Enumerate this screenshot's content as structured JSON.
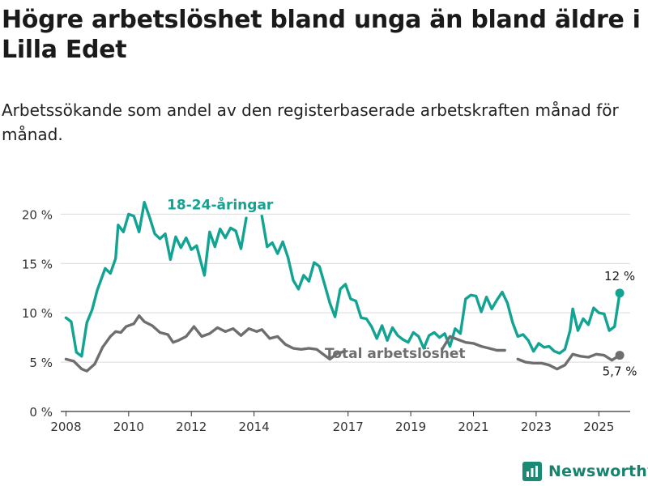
{
  "header": {
    "title": "Högre arbetslöshet bland unga än bland äldre i Lilla Edet",
    "subtitle": "Arbetssökande som andel av den registerbaserade arbetskraften månad för månad."
  },
  "brand": {
    "name": "Newsworthy",
    "icon": "newsworthy-bar-chart-logo",
    "color": "#1a8a75"
  },
  "colors": {
    "youth": "#12a392",
    "total": "#6e6e6e",
    "grid": "#d9d9d9",
    "axis": "#333333"
  },
  "chart_data": {
    "type": "line",
    "title": "Högre arbetslöshet bland unga än bland äldre i Lilla Edet",
    "subtitle": "Arbetssökande som andel av den registerbaserade arbetskraften månad för månad.",
    "xlabel": "",
    "ylabel": "",
    "xlim": [
      "2007-11",
      "2026-01"
    ],
    "ylim": [
      0,
      22
    ],
    "yticks": [
      0,
      5,
      10,
      15,
      20
    ],
    "ytick_labels": [
      "0 %",
      "5 %",
      "10 %",
      "15 %",
      "20 %"
    ],
    "xticks": [
      "2008-01",
      "2010-01",
      "2012-01",
      "2014-01",
      "2017-01",
      "2019-01",
      "2021-01",
      "2023-01",
      "2025-01"
    ],
    "xtick_labels": [
      "2008",
      "2010",
      "2012",
      "2014",
      "2017",
      "2019",
      "2021",
      "2023",
      "2025"
    ],
    "grid": true,
    "series": [
      {
        "name": "18-24-åringar",
        "color": "#12a392",
        "end_label": "12 %",
        "end_value": 12.0,
        "points": [
          [
            "2008-01",
            9.5
          ],
          [
            "2008-03",
            9.1
          ],
          [
            "2008-05",
            6.0
          ],
          [
            "2008-07",
            5.6
          ],
          [
            "2008-09",
            9.0
          ],
          [
            "2008-11",
            10.3
          ],
          [
            "2009-01",
            12.3
          ],
          [
            "2009-04",
            14.5
          ],
          [
            "2009-06",
            14.0
          ],
          [
            "2009-08",
            15.5
          ],
          [
            "2009-09",
            18.9
          ],
          [
            "2009-11",
            18.2
          ],
          [
            "2010-01",
            20.0
          ],
          [
            "2010-03",
            19.8
          ],
          [
            "2010-05",
            18.2
          ],
          [
            "2010-07",
            21.2
          ],
          [
            "2010-09",
            19.7
          ],
          [
            "2010-11",
            18.0
          ],
          [
            "2011-01",
            17.5
          ],
          [
            "2011-03",
            18.0
          ],
          [
            "2011-05",
            15.4
          ],
          [
            "2011-07",
            17.7
          ],
          [
            "2011-09",
            16.6
          ],
          [
            "2011-11",
            17.6
          ],
          [
            "2012-01",
            16.4
          ],
          [
            "2012-03",
            16.8
          ],
          [
            "2012-05",
            14.8
          ],
          [
            "2012-06",
            13.8
          ],
          [
            "2012-08",
            18.2
          ],
          [
            "2012-10",
            16.7
          ],
          [
            "2012-12",
            18.5
          ],
          [
            "2013-02",
            17.6
          ],
          [
            "2013-04",
            18.6
          ],
          [
            "2013-06",
            18.3
          ],
          [
            "2013-08",
            16.5
          ],
          [
            "2013-10",
            19.6
          ]
        ],
        "points_2": [
          [
            "2014-04",
            19.8
          ],
          [
            "2014-06",
            16.7
          ],
          [
            "2014-08",
            17.1
          ],
          [
            "2014-10",
            16.0
          ],
          [
            "2014-12",
            17.2
          ],
          [
            "2015-02",
            15.6
          ],
          [
            "2015-04",
            13.3
          ],
          [
            "2015-06",
            12.4
          ],
          [
            "2015-08",
            13.8
          ],
          [
            "2015-10",
            13.2
          ],
          [
            "2015-12",
            15.1
          ],
          [
            "2016-02",
            14.7
          ],
          [
            "2016-04",
            12.9
          ],
          [
            "2016-06",
            11.0
          ],
          [
            "2016-08",
            9.6
          ],
          [
            "2016-10",
            12.4
          ],
          [
            "2016-12",
            12.9
          ],
          [
            "2017-02",
            11.4
          ],
          [
            "2017-04",
            11.2
          ],
          [
            "2017-06",
            9.5
          ],
          [
            "2017-08",
            9.4
          ],
          [
            "2017-10",
            8.6
          ],
          [
            "2017-12",
            7.4
          ],
          [
            "2018-02",
            8.7
          ],
          [
            "2018-04",
            7.2
          ],
          [
            "2018-06",
            8.5
          ],
          [
            "2018-08",
            7.7
          ],
          [
            "2018-10",
            7.3
          ],
          [
            "2018-12",
            7.0
          ],
          [
            "2019-02",
            8.0
          ],
          [
            "2019-04",
            7.6
          ],
          [
            "2019-06",
            6.4
          ],
          [
            "2019-08",
            7.7
          ],
          [
            "2019-10",
            8.0
          ],
          [
            "2019-12",
            7.5
          ],
          [
            "2020-02",
            7.9
          ],
          [
            "2020-04",
            6.6
          ],
          [
            "2020-06",
            8.4
          ],
          [
            "2020-08",
            7.9
          ],
          [
            "2020-10",
            11.4
          ],
          [
            "2020-12",
            11.8
          ],
          [
            "2021-02",
            11.7
          ],
          [
            "2021-04",
            10.1
          ],
          [
            "2021-06",
            11.6
          ],
          [
            "2021-08",
            10.4
          ],
          [
            "2021-10",
            11.3
          ],
          [
            "2021-12",
            12.1
          ],
          [
            "2022-02",
            11.0
          ],
          [
            "2022-04",
            9.0
          ],
          [
            "2022-06",
            7.6
          ],
          [
            "2022-08",
            7.8
          ],
          [
            "2022-10",
            7.2
          ],
          [
            "2022-12",
            6.1
          ],
          [
            "2023-02",
            6.9
          ],
          [
            "2023-04",
            6.5
          ],
          [
            "2023-06",
            6.6
          ],
          [
            "2023-08",
            6.1
          ],
          [
            "2023-10",
            5.9
          ],
          [
            "2023-12",
            6.3
          ],
          [
            "2024-02",
            8.2
          ],
          [
            "2024-03",
            10.4
          ],
          [
            "2024-05",
            8.2
          ],
          [
            "2024-07",
            9.4
          ],
          [
            "2024-09",
            8.8
          ],
          [
            "2024-11",
            10.5
          ],
          [
            "2025-01",
            10.0
          ],
          [
            "2025-03",
            9.9
          ],
          [
            "2025-05",
            8.2
          ],
          [
            "2025-07",
            8.6
          ],
          [
            "2025-09",
            12.0
          ]
        ]
      },
      {
        "name": "Total arbetslöshet",
        "color": "#6e6e6e",
        "end_label": "5,7 %",
        "end_value": 5.7,
        "points": [
          [
            "2008-01",
            5.3
          ],
          [
            "2008-04",
            5.1
          ],
          [
            "2008-07",
            4.3
          ],
          [
            "2008-09",
            4.1
          ],
          [
            "2008-12",
            4.8
          ],
          [
            "2009-03",
            6.5
          ],
          [
            "2009-06",
            7.6
          ],
          [
            "2009-08",
            8.1
          ],
          [
            "2009-10",
            8.0
          ],
          [
            "2009-12",
            8.6
          ],
          [
            "2010-03",
            8.9
          ],
          [
            "2010-05",
            9.7
          ],
          [
            "2010-07",
            9.1
          ],
          [
            "2010-10",
            8.7
          ],
          [
            "2011-01",
            8.0
          ],
          [
            "2011-04",
            7.8
          ],
          [
            "2011-06",
            7.0
          ],
          [
            "2011-08",
            7.2
          ],
          [
            "2011-11",
            7.6
          ],
          [
            "2012-02",
            8.6
          ],
          [
            "2012-05",
            7.6
          ],
          [
            "2012-08",
            7.9
          ],
          [
            "2012-11",
            8.5
          ],
          [
            "2013-02",
            8.1
          ],
          [
            "2013-05",
            8.4
          ],
          [
            "2013-08",
            7.7
          ],
          [
            "2013-11",
            8.4
          ],
          [
            "2014-02",
            8.1
          ],
          [
            "2014-04",
            8.3
          ],
          [
            "2014-07",
            7.4
          ],
          [
            "2014-10",
            7.6
          ],
          [
            "2015-01",
            6.8
          ],
          [
            "2015-04",
            6.4
          ],
          [
            "2015-07",
            6.3
          ],
          [
            "2015-10",
            6.4
          ],
          [
            "2016-01",
            6.3
          ],
          [
            "2016-04",
            5.7
          ],
          [
            "2016-06",
            5.3
          ],
          [
            "2016-09",
            5.9
          ],
          [
            "2016-12",
            6.1
          ]
        ],
        "points_2": [
          [
            "2020-01",
            6.3
          ],
          [
            "2020-04",
            7.6
          ],
          [
            "2020-07",
            7.3
          ],
          [
            "2020-10",
            7.0
          ],
          [
            "2021-01",
            6.9
          ],
          [
            "2021-04",
            6.6
          ],
          [
            "2021-07",
            6.4
          ],
          [
            "2021-10",
            6.2
          ],
          [
            "2022-01",
            6.2
          ]
        ],
        "points_3": [
          [
            "2022-06",
            5.3
          ],
          [
            "2022-09",
            5.0
          ],
          [
            "2022-12",
            4.9
          ],
          [
            "2023-03",
            4.9
          ],
          [
            "2023-06",
            4.7
          ],
          [
            "2023-09",
            4.3
          ],
          [
            "2023-12",
            4.7
          ],
          [
            "2024-03",
            5.8
          ],
          [
            "2024-06",
            5.6
          ],
          [
            "2024-09",
            5.5
          ],
          [
            "2024-12",
            5.8
          ],
          [
            "2025-03",
            5.7
          ],
          [
            "2025-06",
            5.2
          ],
          [
            "2025-09",
            5.7
          ]
        ]
      }
    ],
    "annotations": [
      {
        "text": "18-24-åringar",
        "series": 0,
        "anchor_date": "2012-12",
        "anchor_value": 20.5
      },
      {
        "text": "Total arbetslöshet",
        "series": 1,
        "anchor_date": "2018-07",
        "anchor_value": 5.4
      }
    ]
  }
}
